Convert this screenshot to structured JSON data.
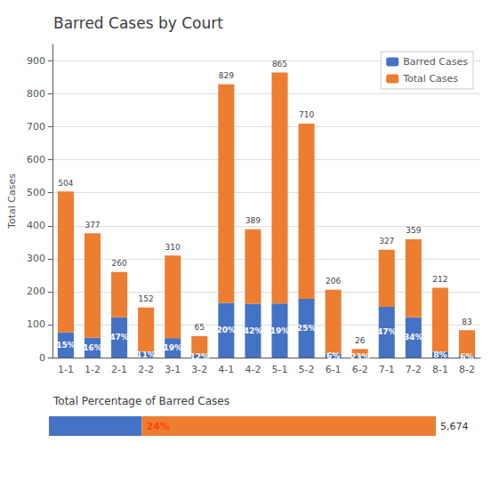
{
  "chart_data": [
    {
      "type": "bar",
      "title": "Barred Cases by Court",
      "ylabel": "Total Cases",
      "categories": [
        "1-1",
        "1-2",
        "2-1",
        "2-2",
        "3-1",
        "3-2",
        "4-1",
        "4-2",
        "5-1",
        "5-2",
        "6-1",
        "6-2",
        "7-1",
        "7-2",
        "8-1",
        "8-2"
      ],
      "series": [
        {
          "name": "Barred Cases",
          "color": "#4472C4",
          "values": [
            76,
            60,
            122,
            17,
            59,
            8,
            166,
            163,
            164,
            178,
            12,
            6,
            154,
            122,
            17,
            5
          ],
          "pct_labels": [
            "15%",
            "16%",
            "47%",
            "11%",
            "19%",
            "12%",
            "20%",
            "42%",
            "19%",
            "25%",
            "6%",
            "23%",
            "47%",
            "34%",
            "8%",
            "6%"
          ]
        },
        {
          "name": "Total Cases",
          "color": "#ED7D31",
          "values": [
            428,
            317,
            138,
            135,
            251,
            57,
            663,
            226,
            701,
            532,
            194,
            20,
            173,
            237,
            195,
            78
          ]
        }
      ],
      "totals": [
        504,
        377,
        260,
        152,
        310,
        65,
        829,
        389,
        865,
        710,
        206,
        26,
        327,
        359,
        212,
        83
      ],
      "stacked": true,
      "ylim": [
        0,
        950
      ],
      "yticks": [
        0,
        100,
        200,
        300,
        400,
        500,
        600,
        700,
        800,
        900
      ],
      "grid": true,
      "legend": "upper right"
    },
    {
      "type": "bar",
      "title": "Total Percentage of Barred Cases",
      "orientation": "horizontal",
      "stacked": true,
      "categories": [
        null
      ],
      "series": [
        {
          "color": "#4472C4",
          "values": [
            24
          ],
          "value_labels": [
            "24%"
          ],
          "label_color": "#FF4500"
        },
        {
          "color": "#ED7D31",
          "values": [
            76
          ]
        }
      ],
      "annotation": "5,674",
      "xlim": [
        0,
        100
      ],
      "tick_labels": false,
      "grid": false
    }
  ]
}
